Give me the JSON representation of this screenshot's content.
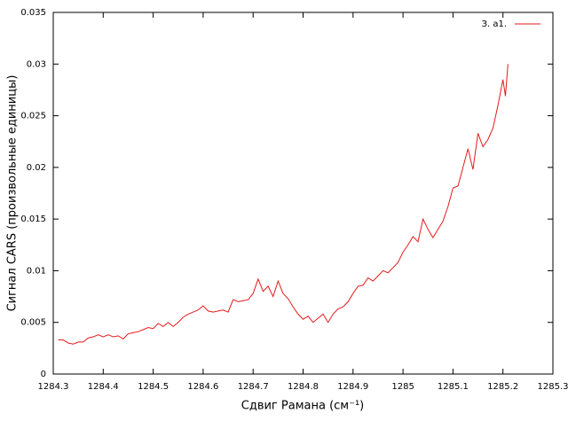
{
  "chart_data": {
    "type": "line",
    "xlabel": "Сдвиг Рамана (см⁻¹)",
    "ylabel": "Сигнал CARS (произвольные единицы)",
    "xlim": [
      1284.3,
      1285.3
    ],
    "xticks": [
      1284.3,
      1284.4,
      1284.5,
      1284.6,
      1284.7,
      1284.8,
      1284.9,
      1285,
      1285.1,
      1285.2,
      1285.3
    ],
    "ylim": [
      0,
      0.035
    ],
    "yticks": [
      0,
      0.005,
      0.01,
      0.015,
      0.02,
      0.025,
      0.03,
      0.035
    ],
    "legend": "top-right",
    "x": [
      1284.31,
      1284.32,
      1284.33,
      1284.34,
      1284.35,
      1284.36,
      1284.37,
      1284.38,
      1284.39,
      1284.4,
      1284.41,
      1284.42,
      1284.43,
      1284.44,
      1284.45,
      1284.46,
      1284.47,
      1284.48,
      1284.49,
      1284.5,
      1284.51,
      1284.52,
      1284.53,
      1284.54,
      1284.55,
      1284.56,
      1284.57,
      1284.58,
      1284.59,
      1284.6,
      1284.61,
      1284.62,
      1284.63,
      1284.64,
      1284.65,
      1284.66,
      1284.67,
      1284.68,
      1284.69,
      1284.7,
      1284.71,
      1284.72,
      1284.73,
      1284.74,
      1284.75,
      1284.76,
      1284.77,
      1284.78,
      1284.79,
      1284.8,
      1284.81,
      1284.82,
      1284.83,
      1284.84,
      1284.85,
      1284.86,
      1284.87,
      1284.88,
      1284.89,
      1284.9,
      1284.91,
      1284.92,
      1284.93,
      1284.94,
      1284.95,
      1284.96,
      1284.97,
      1284.98,
      1284.99,
      1285,
      1285.01,
      1285.02,
      1285.03,
      1285.04,
      1285.05,
      1285.06,
      1285.07,
      1285.08,
      1285.09,
      1285.1,
      1285.11,
      1285.12,
      1285.13,
      1285.14,
      1285.15,
      1285.16,
      1285.17,
      1285.18,
      1285.19,
      1285.2,
      1285.205,
      1285.21
    ],
    "series": [
      {
        "name": "З. а1.",
        "color": "#e41a1c",
        "values": [
          0.0033,
          0.0033,
          0.003,
          0.0029,
          0.0031,
          0.0031,
          0.0035,
          0.0036,
          0.0038,
          0.0036,
          0.0038,
          0.0036,
          0.0037,
          0.0034,
          0.0039,
          0.004,
          0.0041,
          0.0043,
          0.0045,
          0.0044,
          0.0049,
          0.0046,
          0.005,
          0.0046,
          0.005,
          0.0055,
          0.0058,
          0.006,
          0.0062,
          0.0066,
          0.0061,
          0.006,
          0.0061,
          0.0062,
          0.006,
          0.0072,
          0.007,
          0.0071,
          0.0072,
          0.0078,
          0.0092,
          0.008,
          0.0085,
          0.0075,
          0.009,
          0.0078,
          0.0073,
          0.0065,
          0.0058,
          0.0053,
          0.0056,
          0.005,
          0.0054,
          0.0058,
          0.005,
          0.0058,
          0.0063,
          0.0065,
          0.007,
          0.0078,
          0.0085,
          0.0086,
          0.0093,
          0.009,
          0.0095,
          0.01,
          0.0098,
          0.0103,
          0.0108,
          0.0118,
          0.0125,
          0.0133,
          0.0128,
          0.015,
          0.014,
          0.0132,
          0.014,
          0.0148,
          0.0162,
          0.018,
          0.0182,
          0.02,
          0.0218,
          0.0198,
          0.0233,
          0.022,
          0.0227,
          0.0238,
          0.026,
          0.0285,
          0.0269,
          0.03
        ]
      }
    ]
  }
}
